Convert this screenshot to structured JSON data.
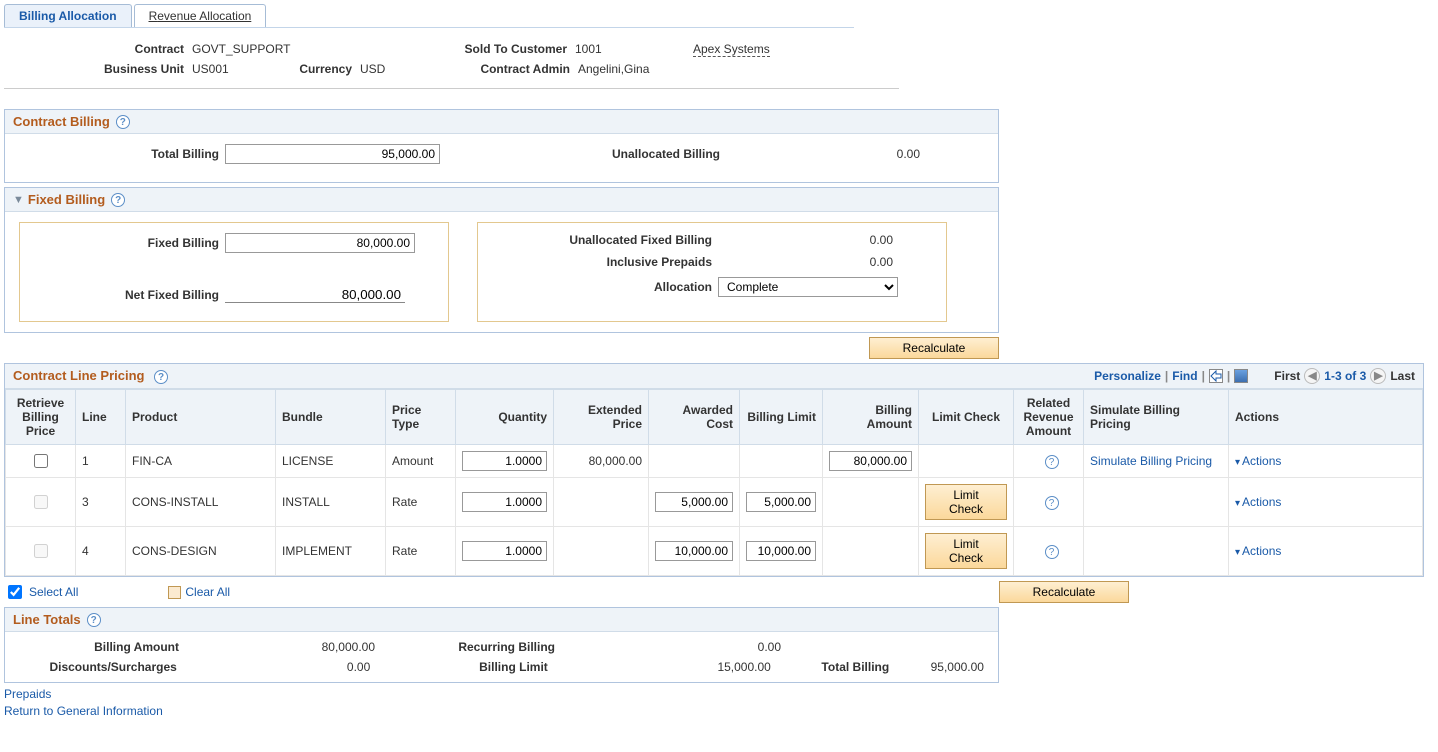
{
  "tabs": {
    "billing": "Billing Allocation",
    "revenue": "Revenue Allocation"
  },
  "header": {
    "contract_lbl": "Contract",
    "contract_val": "GOVT_SUPPORT",
    "sold_to_lbl": "Sold To Customer",
    "sold_to_val": "1001",
    "sold_to_link": "Apex Systems",
    "bu_lbl": "Business Unit",
    "bu_val": "US001",
    "currency_lbl": "Currency",
    "currency_val": "USD",
    "admin_lbl": "Contract Admin",
    "admin_val": "Angelini,Gina"
  },
  "contract_billing": {
    "title": "Contract Billing",
    "total_billing_lbl": "Total Billing",
    "total_billing_val": "95,000.00",
    "unalloc_lbl": "Unallocated Billing",
    "unalloc_val": "0.00"
  },
  "fixed_billing": {
    "title": "Fixed Billing",
    "fixed_lbl": "Fixed Billing",
    "fixed_val": "80,000.00",
    "net_lbl": "Net Fixed Billing",
    "net_val": "80,000.00",
    "unalloc_fixed_lbl": "Unallocated Fixed Billing",
    "unalloc_fixed_val": "0.00",
    "incl_prepaids_lbl": "Inclusive Prepaids",
    "incl_prepaids_val": "0.00",
    "alloc_lbl": "Allocation",
    "alloc_val": "Complete"
  },
  "recalculate_btn": "Recalculate",
  "pricing": {
    "title": "Contract Line Pricing",
    "toolbar": {
      "personalize": "Personalize",
      "find": "Find",
      "first": "First",
      "range": "1-3 of 3",
      "last": "Last"
    },
    "columns": {
      "retrieve": "Retrieve Billing Price",
      "line": "Line",
      "product": "Product",
      "bundle": "Bundle",
      "price_type": "Price Type",
      "quantity": "Quantity",
      "extended": "Extended Price",
      "awarded": "Awarded Cost",
      "limit": "Billing Limit",
      "amount": "Billing Amount",
      "limit_check": "Limit Check",
      "related": "Related Revenue Amount",
      "simulate": "Simulate Billing Pricing",
      "actions": "Actions"
    },
    "rows": [
      {
        "line": "1",
        "product": "FIN-CA",
        "bundle": "LICENSE",
        "price_type": "Amount",
        "qty": "1.0000",
        "extended": "80,000.00",
        "awarded": "",
        "limit": "",
        "amount": "80,000.00",
        "limit_check": "",
        "simulate": "Simulate Billing Pricing",
        "actions": "Actions",
        "check_disabled": false
      },
      {
        "line": "3",
        "product": "CONS-INSTALL",
        "bundle": "INSTALL",
        "price_type": "Rate",
        "qty": "1.0000",
        "extended": "",
        "awarded": "5,000.00",
        "limit": "5,000.00",
        "amount": "",
        "limit_check": "Limit Check",
        "simulate": "",
        "actions": "Actions",
        "check_disabled": true
      },
      {
        "line": "4",
        "product": "CONS-DESIGN",
        "bundle": "IMPLEMENT",
        "price_type": "Rate",
        "qty": "1.0000",
        "extended": "",
        "awarded": "10,000.00",
        "limit": "10,000.00",
        "amount": "",
        "limit_check": "Limit Check",
        "simulate": "",
        "actions": "Actions",
        "check_disabled": true
      }
    ]
  },
  "sel": {
    "select_all": "Select All",
    "clear_all": "Clear All"
  },
  "line_totals": {
    "title": "Line Totals",
    "billing_amount_lbl": "Billing Amount",
    "billing_amount_val": "80,000.00",
    "recurring_lbl": "Recurring Billing",
    "recurring_val": "0.00",
    "discounts_lbl": "Discounts/Surcharges",
    "discounts_val": "0.00",
    "limit_lbl": "Billing Limit",
    "limit_val": "15,000.00",
    "total_lbl": "Total Billing",
    "total_val": "95,000.00"
  },
  "bottom": {
    "prepaids": "Prepaids",
    "return": "Return to General Information"
  }
}
